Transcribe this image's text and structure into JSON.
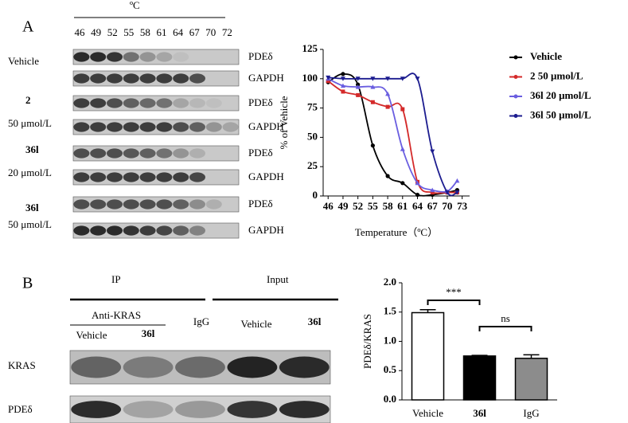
{
  "panel_a": {
    "label": "A",
    "blot": {
      "unit": "ºC",
      "temperatures": [
        "46",
        "49",
        "52",
        "55",
        "58",
        "61",
        "64",
        "67",
        "70",
        "72"
      ],
      "rows": [
        {
          "label": [
            "Vehicle"
          ],
          "bands": [
            "PDEδ",
            "GAPDH"
          ]
        },
        {
          "label": [
            "2",
            "50 μmol/L"
          ],
          "bands": [
            "PDEδ",
            "GAPDH"
          ]
        },
        {
          "label": [
            "36l",
            "20 μmol/L"
          ],
          "bands": [
            "PDEδ",
            "GAPDH"
          ]
        },
        {
          "label": [
            "36l",
            "50 μmol/L"
          ],
          "bands": [
            "PDEδ",
            "GAPDH"
          ]
        }
      ]
    }
  },
  "panel_b": {
    "label": "B",
    "ip": "IP",
    "input": "Input",
    "anti": "Anti-KRAS",
    "lanes": [
      "Vehicle",
      "36l",
      "IgG",
      "Vehicle",
      "36l"
    ],
    "rows": [
      "KRAS",
      "PDEδ"
    ]
  },
  "chart_data": [
    {
      "type": "line",
      "x_label": "Temperature（ºC）",
      "y_label": "% of Vehicle",
      "x": [
        46,
        49,
        52,
        55,
        58,
        61,
        64,
        67,
        70,
        72
      ],
      "xlim": [
        45,
        74.5
      ],
      "ylim": [
        0,
        125
      ],
      "xticks": [
        46,
        49,
        52,
        55,
        58,
        61,
        64,
        67,
        70,
        73
      ],
      "yticks": [
        0,
        25,
        50,
        75,
        100,
        125
      ],
      "legend": "top-right",
      "series": [
        {
          "name": "Vehicle",
          "color": "#000000",
          "marker": "circle",
          "values": [
            97,
            104,
            95,
            43,
            17,
            11,
            1,
            1,
            3,
            5
          ]
        },
        {
          "name": "2 50 μmol/L",
          "color": "#d42a2a",
          "marker": "square",
          "values": [
            98,
            89,
            86,
            80,
            76,
            74,
            12,
            3,
            3,
            3
          ]
        },
        {
          "name": "36l 20 μmol/L",
          "color": "#6a5ee0",
          "marker": "triangle",
          "values": [
            100,
            94,
            93,
            93,
            87,
            40,
            11,
            5,
            4,
            13
          ]
        },
        {
          "name": "36l 50 μmol/L",
          "color": "#1c1c8f",
          "marker": "triangle-down",
          "values": [
            101,
            100,
            100,
            100,
            100,
            100,
            100,
            38,
            3,
            3
          ]
        }
      ]
    },
    {
      "type": "bar",
      "y_label": "PDEδ/KRAS",
      "categories": [
        "Vehicle",
        "36l",
        "IgG"
      ],
      "values": [
        1.49,
        0.75,
        0.71
      ],
      "errors": [
        0.05,
        0.01,
        0.06
      ],
      "colors": [
        "#ffffff",
        "#000000",
        "#8c8c8c"
      ],
      "ylim": [
        0,
        2
      ],
      "yticks": [
        {
          "value": 0,
          "label": "0.0"
        },
        0.5,
        {
          "value": 1,
          "label": "1.0"
        },
        1.5,
        {
          "value": 2,
          "label": "2.0"
        }
      ],
      "annotations": [
        {
          "text": "***",
          "from": 0,
          "to": 1
        },
        {
          "text": "ns",
          "from": 1,
          "to": 2
        }
      ]
    }
  ]
}
